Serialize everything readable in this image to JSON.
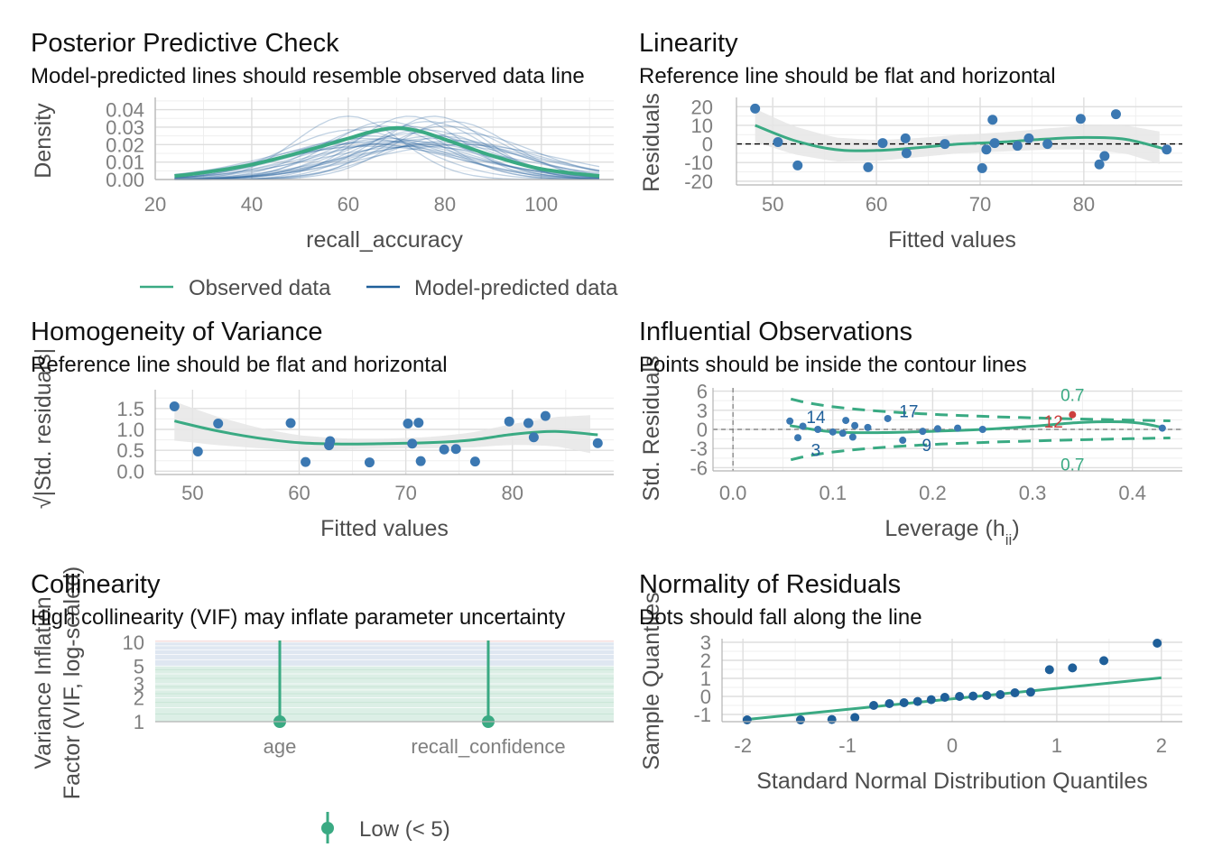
{
  "colors": {
    "observed": "#3aaa83",
    "model": "#1f5f99",
    "point": "#3b78b2",
    "highlight": "#cd3e3e",
    "band": "#e6e6e6",
    "vif_low": "#dcefe6",
    "vif_moderate": "#dfe7f1",
    "vif_high": "#f6dede"
  },
  "chart_data": [
    {
      "id": "ppc",
      "type": "line",
      "title": "Posterior Predictive Check",
      "subtitle": "Model-predicted lines should resemble observed data line",
      "xlabel": "recall_accuracy",
      "ylabel": "Density",
      "xlim": [
        20,
        115
      ],
      "ylim": [
        0,
        0.047
      ],
      "xticks": [
        "20",
        "40",
        "60",
        "80",
        "100"
      ],
      "yticks": [
        "0.00",
        "0.01",
        "0.02",
        "0.03",
        "0.04"
      ],
      "legend": [
        "Observed data",
        "Model-predicted data"
      ],
      "legend_position": "bottom",
      "observed": {
        "x": [
          24,
          30,
          40,
          50,
          60,
          65,
          70,
          75,
          80,
          90,
          100,
          112
        ],
        "y": [
          0.002,
          0.004,
          0.0085,
          0.0155,
          0.0235,
          0.0275,
          0.0295,
          0.0275,
          0.023,
          0.0135,
          0.006,
          0.002
        ]
      },
      "model_samples": 30,
      "model_range": [
        24,
        112
      ]
    },
    {
      "id": "linearity",
      "type": "scatter",
      "title": "Linearity",
      "subtitle": "Reference line should be flat and horizontal",
      "xlabel": "Fitted values",
      "ylabel": "Residuals",
      "xlim": [
        46.5,
        89.5
      ],
      "ylim": [
        -22,
        25
      ],
      "xticks": [
        "50",
        "60",
        "70",
        "80"
      ],
      "yticks": [
        "-20",
        "-10",
        "0",
        "10",
        "20"
      ],
      "points": [
        [
          48.3,
          19
        ],
        [
          50.5,
          1
        ],
        [
          52.4,
          -11.5
        ],
        [
          59.2,
          -12.5
        ],
        [
          60.6,
          0.5
        ],
        [
          62.8,
          3
        ],
        [
          62.9,
          -5
        ],
        [
          66.6,
          0
        ],
        [
          70.2,
          -13
        ],
        [
          70.6,
          -3
        ],
        [
          71.2,
          13
        ],
        [
          71.4,
          0.5
        ],
        [
          73.6,
          -1
        ],
        [
          74.7,
          3
        ],
        [
          76.5,
          0
        ],
        [
          79.7,
          13.5
        ],
        [
          81.5,
          -11
        ],
        [
          82,
          -6.5
        ],
        [
          83.1,
          16
        ],
        [
          88,
          -3
        ]
      ],
      "smooth": {
        "x": [
          48.3,
          52,
          56,
          60,
          64,
          68,
          72,
          76,
          80,
          84,
          88
        ],
        "y": [
          10,
          2,
          -3,
          -3.5,
          -2,
          0,
          1,
          2.5,
          3.5,
          2.5,
          -3
        ]
      }
    },
    {
      "id": "homogeneity",
      "type": "scatter",
      "title": "Homogeneity of Variance",
      "subtitle": "Reference line should be flat and horizontal",
      "xlabel": "Fitted values",
      "ylabel": "√|Std. residuals|",
      "xlim": [
        46.5,
        89.5
      ],
      "ylim": [
        -0.08,
        1.95
      ],
      "xticks": [
        "50",
        "60",
        "70",
        "80"
      ],
      "yticks": [
        "0.0",
        "0.5",
        "1.0",
        "1.5"
      ],
      "points": [
        [
          48.3,
          1.55
        ],
        [
          50.5,
          0.47
        ],
        [
          52.4,
          1.14
        ],
        [
          59.2,
          1.15
        ],
        [
          60.6,
          0.22
        ],
        [
          62.8,
          0.62
        ],
        [
          62.9,
          0.72
        ],
        [
          66.6,
          0.21
        ],
        [
          70.2,
          1.14
        ],
        [
          70.6,
          0.66
        ],
        [
          71.2,
          1.16
        ],
        [
          71.4,
          0.24
        ],
        [
          73.6,
          0.52
        ],
        [
          74.7,
          0.53
        ],
        [
          76.5,
          0.23
        ],
        [
          79.7,
          1.19
        ],
        [
          81.5,
          1.15
        ],
        [
          82,
          0.81
        ],
        [
          83.1,
          1.32
        ],
        [
          88,
          0.67
        ]
      ],
      "smooth": {
        "x": [
          48.3,
          52,
          56,
          60,
          64,
          68,
          72,
          76,
          80,
          84,
          88
        ],
        "y": [
          1.2,
          0.98,
          0.8,
          0.68,
          0.65,
          0.66,
          0.68,
          0.74,
          0.88,
          0.95,
          0.87
        ]
      }
    },
    {
      "id": "influential",
      "type": "scatter",
      "title": "Influential Observations",
      "subtitle": "Points should be inside the contour lines",
      "xlabel": "Leverage (h",
      "xlabel_sub": "ii",
      "xlabel_end": ")",
      "ylabel": "Std. Residuals",
      "xlim": [
        -0.02,
        0.45
      ],
      "ylim": [
        -6.5,
        6.5
      ],
      "xticks": [
        "0.0",
        "0.1",
        "0.2",
        "0.3",
        "0.4"
      ],
      "yticks": [
        "-6",
        "-3",
        "0",
        "3",
        "6"
      ],
      "contour_label": "0.7",
      "points": [
        [
          0.057,
          1.3
        ],
        [
          0.065,
          -1.3
        ],
        [
          0.07,
          0.5
        ],
        [
          0.085,
          0
        ],
        [
          0.1,
          -0.4
        ],
        [
          0.11,
          -0.6
        ],
        [
          0.113,
          1.4
        ],
        [
          0.12,
          -1.2
        ],
        [
          0.122,
          0.6
        ],
        [
          0.135,
          0.3
        ],
        [
          0.155,
          1.7
        ],
        [
          0.17,
          -1.7
        ],
        [
          0.19,
          -0.3
        ],
        [
          0.205,
          0.1
        ],
        [
          0.225,
          0.2
        ],
        [
          0.25,
          0
        ],
        [
          0.34,
          2.3
        ],
        [
          0.43,
          0.2
        ]
      ],
      "highlight_point": [
        0.34,
        2.3
      ],
      "labels": [
        {
          "text": "14",
          "x": 0.083,
          "y": 2.0
        },
        {
          "text": "17",
          "x": 0.176,
          "y": 2.9
        },
        {
          "text": "12",
          "x": 0.321,
          "y": 1.3
        },
        {
          "text": "3",
          "x": 0.083,
          "y": -3.2
        },
        {
          "text": "9",
          "x": 0.194,
          "y": -2.4
        }
      ],
      "smooth": {
        "x": [
          0.057,
          0.1,
          0.15,
          0.2,
          0.25,
          0.3,
          0.35,
          0.4,
          0.43
        ],
        "y": [
          0.6,
          -0.4,
          -0.5,
          -0.3,
          0,
          0.5,
          1.1,
          1.1,
          0.3
        ]
      }
    },
    {
      "id": "collinearity",
      "type": "scatter",
      "title": "Collinearity",
      "subtitle": "High collinearity (VIF) may inflate parameter uncertainty",
      "xlabel": "",
      "ylabel_lines": [
        "Variance Inflation",
        "Factor (VIF, log-scaled)"
      ],
      "categories": [
        "age",
        "recall_confidence"
      ],
      "values": [
        1,
        1
      ],
      "yscale": "log",
      "ylim": [
        1,
        10.5
      ],
      "yticks": [
        "1",
        "2",
        "3",
        "5",
        "10"
      ],
      "legend": [
        "Low (< 5)"
      ],
      "legend_position": "bottom"
    },
    {
      "id": "normality",
      "type": "scatter",
      "title": "Normality of Residuals",
      "subtitle": "Dots should fall along the line",
      "xlabel": "Standard Normal Distribution Quantiles",
      "ylabel": "Sample Quantiles",
      "xlim": [
        -2.2,
        2.2
      ],
      "ylim": [
        -1.4,
        3.2
      ],
      "xticks": [
        "-2",
        "-1",
        "0",
        "1",
        "2"
      ],
      "yticks": [
        "-1",
        "0",
        "1",
        "2",
        "3"
      ],
      "points": [
        [
          -1.96,
          -1.3
        ],
        [
          -1.45,
          -1.3
        ],
        [
          -1.15,
          -1.28
        ],
        [
          -0.93,
          -1.17
        ],
        [
          -0.75,
          -0.5
        ],
        [
          -0.6,
          -0.4
        ],
        [
          -0.46,
          -0.35
        ],
        [
          -0.33,
          -0.28
        ],
        [
          -0.2,
          -0.18
        ],
        [
          -0.07,
          -0.05
        ],
        [
          0.07,
          0
        ],
        [
          0.2,
          0.02
        ],
        [
          0.33,
          0.05
        ],
        [
          0.46,
          0.1
        ],
        [
          0.6,
          0.2
        ],
        [
          0.75,
          0.24
        ],
        [
          0.93,
          1.48
        ],
        [
          1.15,
          1.58
        ],
        [
          1.45,
          1.98
        ],
        [
          1.96,
          2.95
        ]
      ],
      "line": {
        "x": [
          -2,
          2
        ],
        "y": [
          -1.3,
          1.03
        ]
      }
    }
  ]
}
